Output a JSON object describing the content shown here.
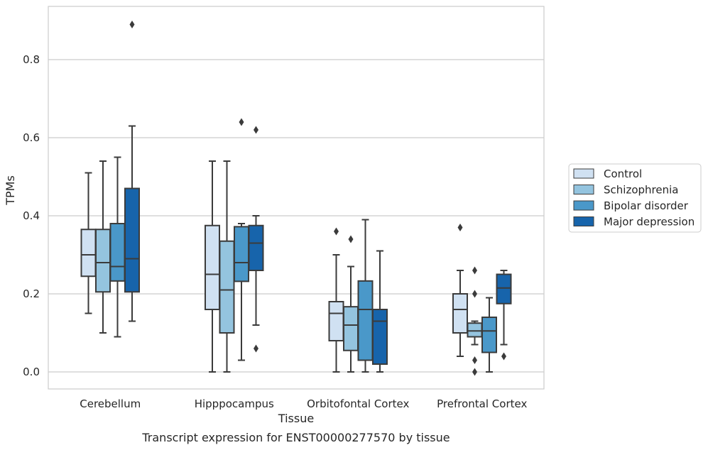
{
  "chart_data": {
    "type": "box",
    "caption": "Transcript expression for ENST00000277570 by tissue",
    "xlabel": "Tissue",
    "ylabel": "TPMs",
    "ylim": [
      -0.043,
      0.935
    ],
    "yticks": [
      "0.0",
      "0.2",
      "0.4",
      "0.6",
      "0.8"
    ],
    "grid": "horizontal",
    "legend_position": "right",
    "categories": [
      "Cerebellum",
      "Hipppocampus",
      "Orbitofontal Cortex",
      "Prefrontal Cortex"
    ],
    "series": [
      {
        "name": "Control",
        "color": "#d0e1f2",
        "boxes": [
          {
            "whislo": 0.15,
            "q1": 0.245,
            "med": 0.3,
            "q3": 0.365,
            "whishi": 0.51,
            "fliers": []
          },
          {
            "whislo": 0.0,
            "q1": 0.16,
            "med": 0.25,
            "q3": 0.375,
            "whishi": 0.54,
            "fliers": []
          },
          {
            "whislo": 0.0,
            "q1": 0.08,
            "med": 0.15,
            "q3": 0.18,
            "whishi": 0.3,
            "fliers": [
              0.36
            ]
          },
          {
            "whislo": 0.04,
            "q1": 0.1,
            "med": 0.16,
            "q3": 0.2,
            "whishi": 0.26,
            "fliers": [
              0.37
            ]
          }
        ]
      },
      {
        "name": "Schizophrenia",
        "color": "#94c4df",
        "boxes": [
          {
            "whislo": 0.1,
            "q1": 0.205,
            "med": 0.28,
            "q3": 0.365,
            "whishi": 0.54,
            "fliers": []
          },
          {
            "whislo": 0.0,
            "q1": 0.1,
            "med": 0.21,
            "q3": 0.335,
            "whishi": 0.54,
            "fliers": []
          },
          {
            "whislo": 0.0,
            "q1": 0.055,
            "med": 0.12,
            "q3": 0.167,
            "whishi": 0.27,
            "fliers": [
              0.34
            ]
          },
          {
            "whislo": 0.07,
            "q1": 0.09,
            "med": 0.105,
            "q3": 0.125,
            "whishi": 0.13,
            "fliers": [
              0.0,
              0.03,
              0.2,
              0.26
            ]
          }
        ]
      },
      {
        "name": "Bipolar disorder",
        "color": "#4a98c9",
        "boxes": [
          {
            "whislo": 0.09,
            "q1": 0.233,
            "med": 0.27,
            "q3": 0.38,
            "whishi": 0.55,
            "fliers": []
          },
          {
            "whislo": 0.03,
            "q1": 0.232,
            "med": 0.28,
            "q3": 0.372,
            "whishi": 0.38,
            "fliers": [
              0.64
            ]
          },
          {
            "whislo": 0.0,
            "q1": 0.03,
            "med": 0.16,
            "q3": 0.233,
            "whishi": 0.39,
            "fliers": []
          },
          {
            "whislo": 0.0,
            "q1": 0.05,
            "med": 0.105,
            "q3": 0.14,
            "whishi": 0.19,
            "fliers": []
          }
        ]
      },
      {
        "name": "Major depression",
        "color": "#1764ab",
        "boxes": [
          {
            "whislo": 0.13,
            "q1": 0.205,
            "med": 0.29,
            "q3": 0.47,
            "whishi": 0.63,
            "fliers": [
              0.89
            ]
          },
          {
            "whislo": 0.12,
            "q1": 0.26,
            "med": 0.33,
            "q3": 0.375,
            "whishi": 0.4,
            "fliers": [
              0.06,
              0.62
            ]
          },
          {
            "whislo": 0.0,
            "q1": 0.02,
            "med": 0.13,
            "q3": 0.16,
            "whishi": 0.31,
            "fliers": []
          },
          {
            "whislo": 0.07,
            "q1": 0.175,
            "med": 0.215,
            "q3": 0.25,
            "whishi": 0.26,
            "fliers": [
              0.04
            ]
          }
        ]
      }
    ]
  }
}
